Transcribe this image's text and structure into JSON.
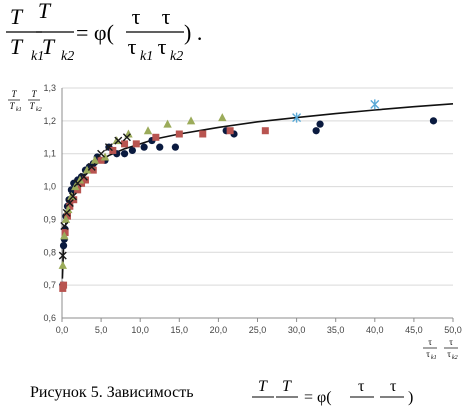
{
  "formula": {
    "lhs_num": "T",
    "lhs_den": "T",
    "lhs_den_sub": "k1",
    "rhs_num": "T",
    "rhs_den": "T",
    "rhs_den_sub": "k2",
    "equals": "= φ(",
    "arg_num1": "τ",
    "arg_den1": "τ",
    "arg_den1_sub": "k1",
    "arg_num2": "τ",
    "arg_den2": "τ",
    "arg_den2_sub": "k2",
    "close": ") ."
  },
  "caption": {
    "prefix": "Рисунок 5. Зависимость",
    "num": "T",
    "equals": "= φ(",
    "tau": "τ",
    "close": ")"
  },
  "colors": {
    "navy": "#0a1a3f",
    "red": "#b85450",
    "olive": "#9bab5a",
    "cross": "#1a1a1a",
    "cyan": "#5aa9d6",
    "curve": "#111111",
    "grid": "#d9d9d9",
    "axis": "#8c8c8c",
    "tick": "#444444"
  },
  "chart_data": {
    "type": "scatter",
    "xlabel": "τ/τk1 τ/τk2",
    "ylabel": "T/Tk1 T/Tk2",
    "xlim": [
      0,
      50
    ],
    "ylim": [
      0.6,
      1.3
    ],
    "x_ticks": [
      "0,0",
      "5,0",
      "10,0",
      "15,0",
      "20,0",
      "25,0",
      "30,0",
      "35,0",
      "40,0",
      "45,0",
      "50,0"
    ],
    "y_ticks": [
      "0,6",
      "0,7",
      "0,8",
      "0,9",
      "1,0",
      "1,1",
      "1,2",
      "1,3"
    ],
    "grid": "horizontal",
    "series": [
      {
        "marker": "circle",
        "color": "navy",
        "points": [
          [
            0.1,
            0.7
          ],
          [
            0.2,
            0.82
          ],
          [
            0.3,
            0.84
          ],
          [
            0.4,
            0.87
          ],
          [
            0.5,
            0.91
          ],
          [
            0.7,
            0.94
          ],
          [
            0.9,
            0.96
          ],
          [
            1.2,
            0.99
          ],
          [
            1.5,
            1.01
          ],
          [
            2.0,
            1.02
          ],
          [
            2.5,
            1.03
          ],
          [
            3.0,
            1.05
          ],
          [
            3.5,
            1.06
          ],
          [
            4.0,
            1.07
          ],
          [
            4.5,
            1.09
          ],
          [
            5.5,
            1.08
          ],
          [
            6.0,
            1.12
          ],
          [
            7.0,
            1.1
          ],
          [
            8.0,
            1.1
          ],
          [
            9.0,
            1.11
          ],
          [
            10.5,
            1.12
          ],
          [
            11.5,
            1.14
          ],
          [
            12.5,
            1.12
          ],
          [
            14.5,
            1.12
          ],
          [
            21.0,
            1.17
          ],
          [
            22.0,
            1.16
          ],
          [
            32.5,
            1.17
          ],
          [
            33.0,
            1.19
          ],
          [
            47.5,
            1.2
          ]
        ]
      },
      {
        "marker": "square",
        "color": "red",
        "points": [
          [
            0.1,
            0.69
          ],
          [
            0.2,
            0.7
          ],
          [
            0.4,
            0.86
          ],
          [
            0.7,
            0.91
          ],
          [
            1.0,
            0.94
          ],
          [
            1.5,
            0.96
          ],
          [
            2.0,
            0.99
          ],
          [
            2.5,
            1.01
          ],
          [
            3.0,
            1.02
          ],
          [
            4.0,
            1.05
          ],
          [
            5.0,
            1.08
          ],
          [
            6.5,
            1.11
          ],
          [
            8.0,
            1.13
          ],
          [
            9.5,
            1.13
          ],
          [
            12.0,
            1.15
          ],
          [
            15.0,
            1.16
          ],
          [
            18.0,
            1.16
          ],
          [
            21.5,
            1.17
          ],
          [
            26.0,
            1.17
          ]
        ]
      },
      {
        "marker": "triangle",
        "color": "olive",
        "points": [
          [
            0.1,
            0.76
          ],
          [
            0.3,
            0.85
          ],
          [
            0.5,
            0.9
          ],
          [
            0.8,
            0.93
          ],
          [
            1.2,
            0.97
          ],
          [
            1.7,
            1.0
          ],
          [
            2.3,
            1.02
          ],
          [
            3.2,
            1.05
          ],
          [
            4.2,
            1.08
          ],
          [
            5.5,
            1.09
          ],
          [
            7.0,
            1.14
          ],
          [
            8.5,
            1.16
          ],
          [
            11.0,
            1.17
          ],
          [
            13.5,
            1.19
          ],
          [
            16.5,
            1.2
          ],
          [
            20.5,
            1.21
          ]
        ]
      },
      {
        "marker": "cross",
        "color": "cross",
        "points": [
          [
            0.1,
            0.79
          ],
          [
            0.3,
            0.88
          ],
          [
            0.6,
            0.92
          ],
          [
            1.0,
            0.95
          ],
          [
            1.4,
            0.97
          ],
          [
            2.0,
            1.01
          ],
          [
            2.8,
            1.03
          ],
          [
            3.8,
            1.06
          ],
          [
            5.0,
            1.1
          ],
          [
            6.0,
            1.12
          ],
          [
            7.2,
            1.14
          ],
          [
            8.3,
            1.15
          ]
        ]
      },
      {
        "marker": "asterisk",
        "color": "cyan",
        "points": [
          [
            30.0,
            1.21
          ],
          [
            40.0,
            1.25
          ]
        ]
      }
    ],
    "trend_curve": {
      "color": "curve",
      "points": [
        [
          0.05,
          0.72
        ],
        [
          0.2,
          0.82
        ],
        [
          0.5,
          0.89
        ],
        [
          1.0,
          0.95
        ],
        [
          2.0,
          1.01
        ],
        [
          3.0,
          1.04
        ],
        [
          4.0,
          1.06
        ],
        [
          5.0,
          1.08
        ],
        [
          6.0,
          1.095
        ],
        [
          7.0,
          1.105
        ],
        [
          8.0,
          1.115
        ],
        [
          10.0,
          1.13
        ],
        [
          12.0,
          1.145
        ],
        [
          15.0,
          1.16
        ],
        [
          20.0,
          1.18
        ],
        [
          25.0,
          1.197
        ],
        [
          30.0,
          1.21
        ],
        [
          35.0,
          1.222
        ],
        [
          40.0,
          1.233
        ],
        [
          45.0,
          1.243
        ],
        [
          50.0,
          1.252
        ]
      ]
    }
  }
}
